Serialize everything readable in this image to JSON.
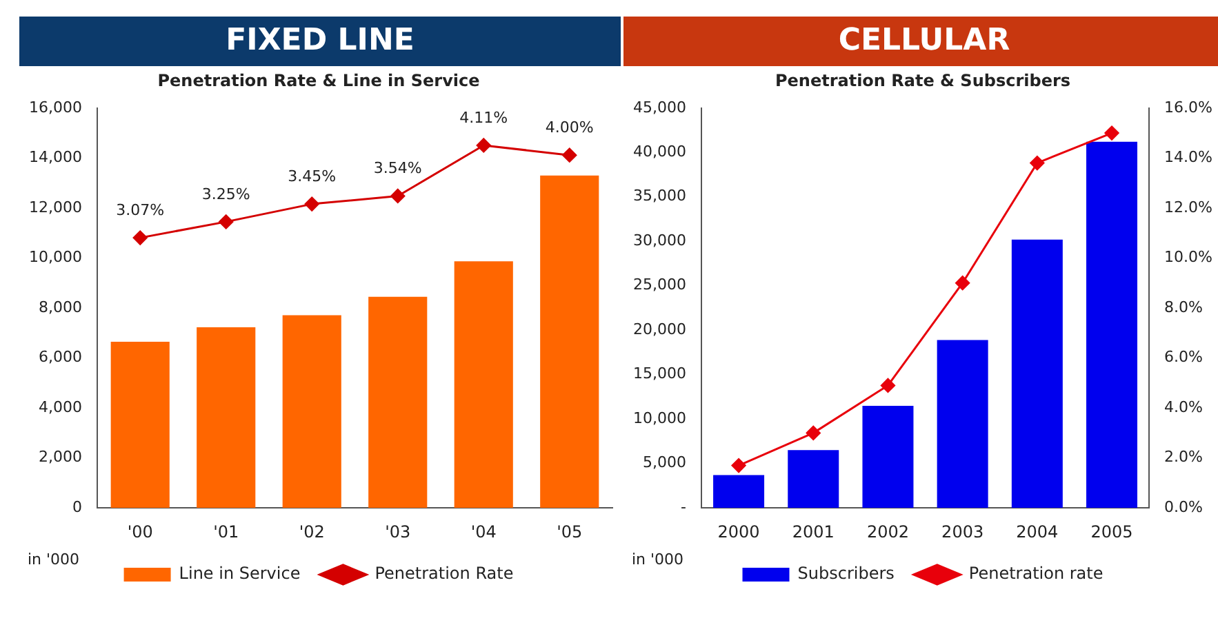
{
  "chart_data": [
    {
      "type": "bar",
      "title": "FIXED LINE",
      "subtitle": "Penetration Rate & Line in Service",
      "categories": [
        "'00",
        "'01",
        "'02",
        "'03",
        "'04",
        "'05"
      ],
      "series": [
        {
          "name": "Line in Service",
          "color": "#ff6600",
          "values": [
            6650,
            7230,
            7710,
            8450,
            9870,
            13300
          ]
        },
        {
          "name": "Penetration Rate",
          "type": "line",
          "axis": "y2",
          "color": "#d40000",
          "values": [
            3.07,
            3.25,
            3.45,
            3.54,
            4.11,
            4.0
          ],
          "value_labels": [
            "3.07%",
            "3.25%",
            "3.45%",
            "3.54%",
            "4.11%",
            "4.00%"
          ]
        }
      ],
      "ylim": [
        0,
        16000
      ],
      "yticks": [
        0,
        {
          "value": 2000,
          "label": "2,000"
        },
        {
          "value": 4000,
          "label": "4,000"
        },
        {
          "value": 6000,
          "label": "6,000"
        },
        {
          "value": 8000,
          "label": "8,000"
        },
        {
          "value": 10000,
          "label": "10,000"
        },
        {
          "value": 12000,
          "label": "12,000"
        },
        {
          "value": 14000,
          "label": "14,000"
        },
        {
          "value": 16000,
          "label": "16,000"
        }
      ],
      "y2lim": [
        0.03,
        4.53
      ],
      "marker": "diamond",
      "legend": "bottom",
      "annotations": [
        "in '000"
      ]
    },
    {
      "type": "bar",
      "title": "CELLULAR",
      "subtitle": "Penetration Rate & Subscribers",
      "categories": [
        "2000",
        "2001",
        "2002",
        "2003",
        "2004",
        "2005"
      ],
      "series": [
        {
          "name": "Subscribers",
          "color": "#0000ee",
          "values": [
            3700,
            6500,
            11500,
            18900,
            30200,
            41200
          ]
        },
        {
          "name": "Penetration rate",
          "type": "line",
          "axis": "y2",
          "color": "#e8000b",
          "values": [
            1.7,
            3.0,
            4.9,
            9.0,
            13.8,
            15.0
          ]
        }
      ],
      "ylim": [
        0,
        45000
      ],
      "yticks": [
        {
          "value": 0,
          "label": "-"
        },
        {
          "value": 5000,
          "label": "5,000"
        },
        {
          "value": 10000,
          "label": "10,000"
        },
        {
          "value": 15000,
          "label": "15,000"
        },
        {
          "value": 20000,
          "label": "20,000"
        },
        {
          "value": 25000,
          "label": "25,000"
        },
        {
          "value": 30000,
          "label": "30,000"
        },
        {
          "value": 35000,
          "label": "35,000"
        },
        {
          "value": 40000,
          "label": "40,000"
        },
        {
          "value": 45000,
          "label": "45,000"
        }
      ],
      "y2lim": [
        0,
        16
      ],
      "y2ticks": [
        {
          "value": 0,
          "label": "0.0%"
        },
        {
          "value": 2,
          "label": "2.0%"
        },
        {
          "value": 4,
          "label": "4.0%"
        },
        {
          "value": 6,
          "label": "6.0%"
        },
        {
          "value": 8,
          "label": "8.0%"
        },
        {
          "value": 10,
          "label": "10.0%"
        },
        {
          "value": 12,
          "label": "12.0%"
        },
        {
          "value": 14,
          "label": "14.0%"
        },
        {
          "value": 16,
          "label": "16.0%"
        }
      ],
      "marker": "diamond",
      "legend": "bottom",
      "annotations": [
        "in '000"
      ]
    }
  ]
}
